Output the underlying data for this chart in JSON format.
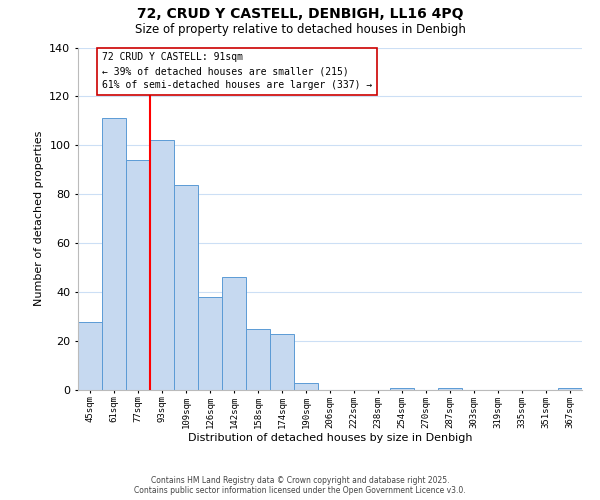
{
  "title": "72, CRUD Y CASTELL, DENBIGH, LL16 4PQ",
  "subtitle": "Size of property relative to detached houses in Denbigh",
  "xlabel": "Distribution of detached houses by size in Denbigh",
  "ylabel": "Number of detached properties",
  "bar_color": "#c6d9f0",
  "bar_edge_color": "#5b9bd5",
  "bin_labels": [
    "45sqm",
    "61sqm",
    "77sqm",
    "93sqm",
    "109sqm",
    "126sqm",
    "142sqm",
    "158sqm",
    "174sqm",
    "190sqm",
    "206sqm",
    "222sqm",
    "238sqm",
    "254sqm",
    "270sqm",
    "287sqm",
    "303sqm",
    "319sqm",
    "335sqm",
    "351sqm",
    "367sqm"
  ],
  "bar_heights": [
    28,
    111,
    94,
    102,
    84,
    38,
    46,
    25,
    23,
    3,
    0,
    0,
    0,
    1,
    0,
    1,
    0,
    0,
    0,
    0,
    1
  ],
  "ylim": [
    0,
    140
  ],
  "yticks": [
    0,
    20,
    40,
    60,
    80,
    100,
    120,
    140
  ],
  "annotation_title": "72 CRUD Y CASTELL: 91sqm",
  "annotation_line1": "← 39% of detached houses are smaller (215)",
  "annotation_line2": "61% of semi-detached houses are larger (337) →",
  "marker_line_color": "#ff0000",
  "annotation_box_color": "#ffffff",
  "annotation_box_edge": "#cc0000",
  "footer_line1": "Contains HM Land Registry data © Crown copyright and database right 2025.",
  "footer_line2": "Contains public sector information licensed under the Open Government Licence v3.0.",
  "background_color": "#ffffff",
  "grid_color": "#ccdff5"
}
